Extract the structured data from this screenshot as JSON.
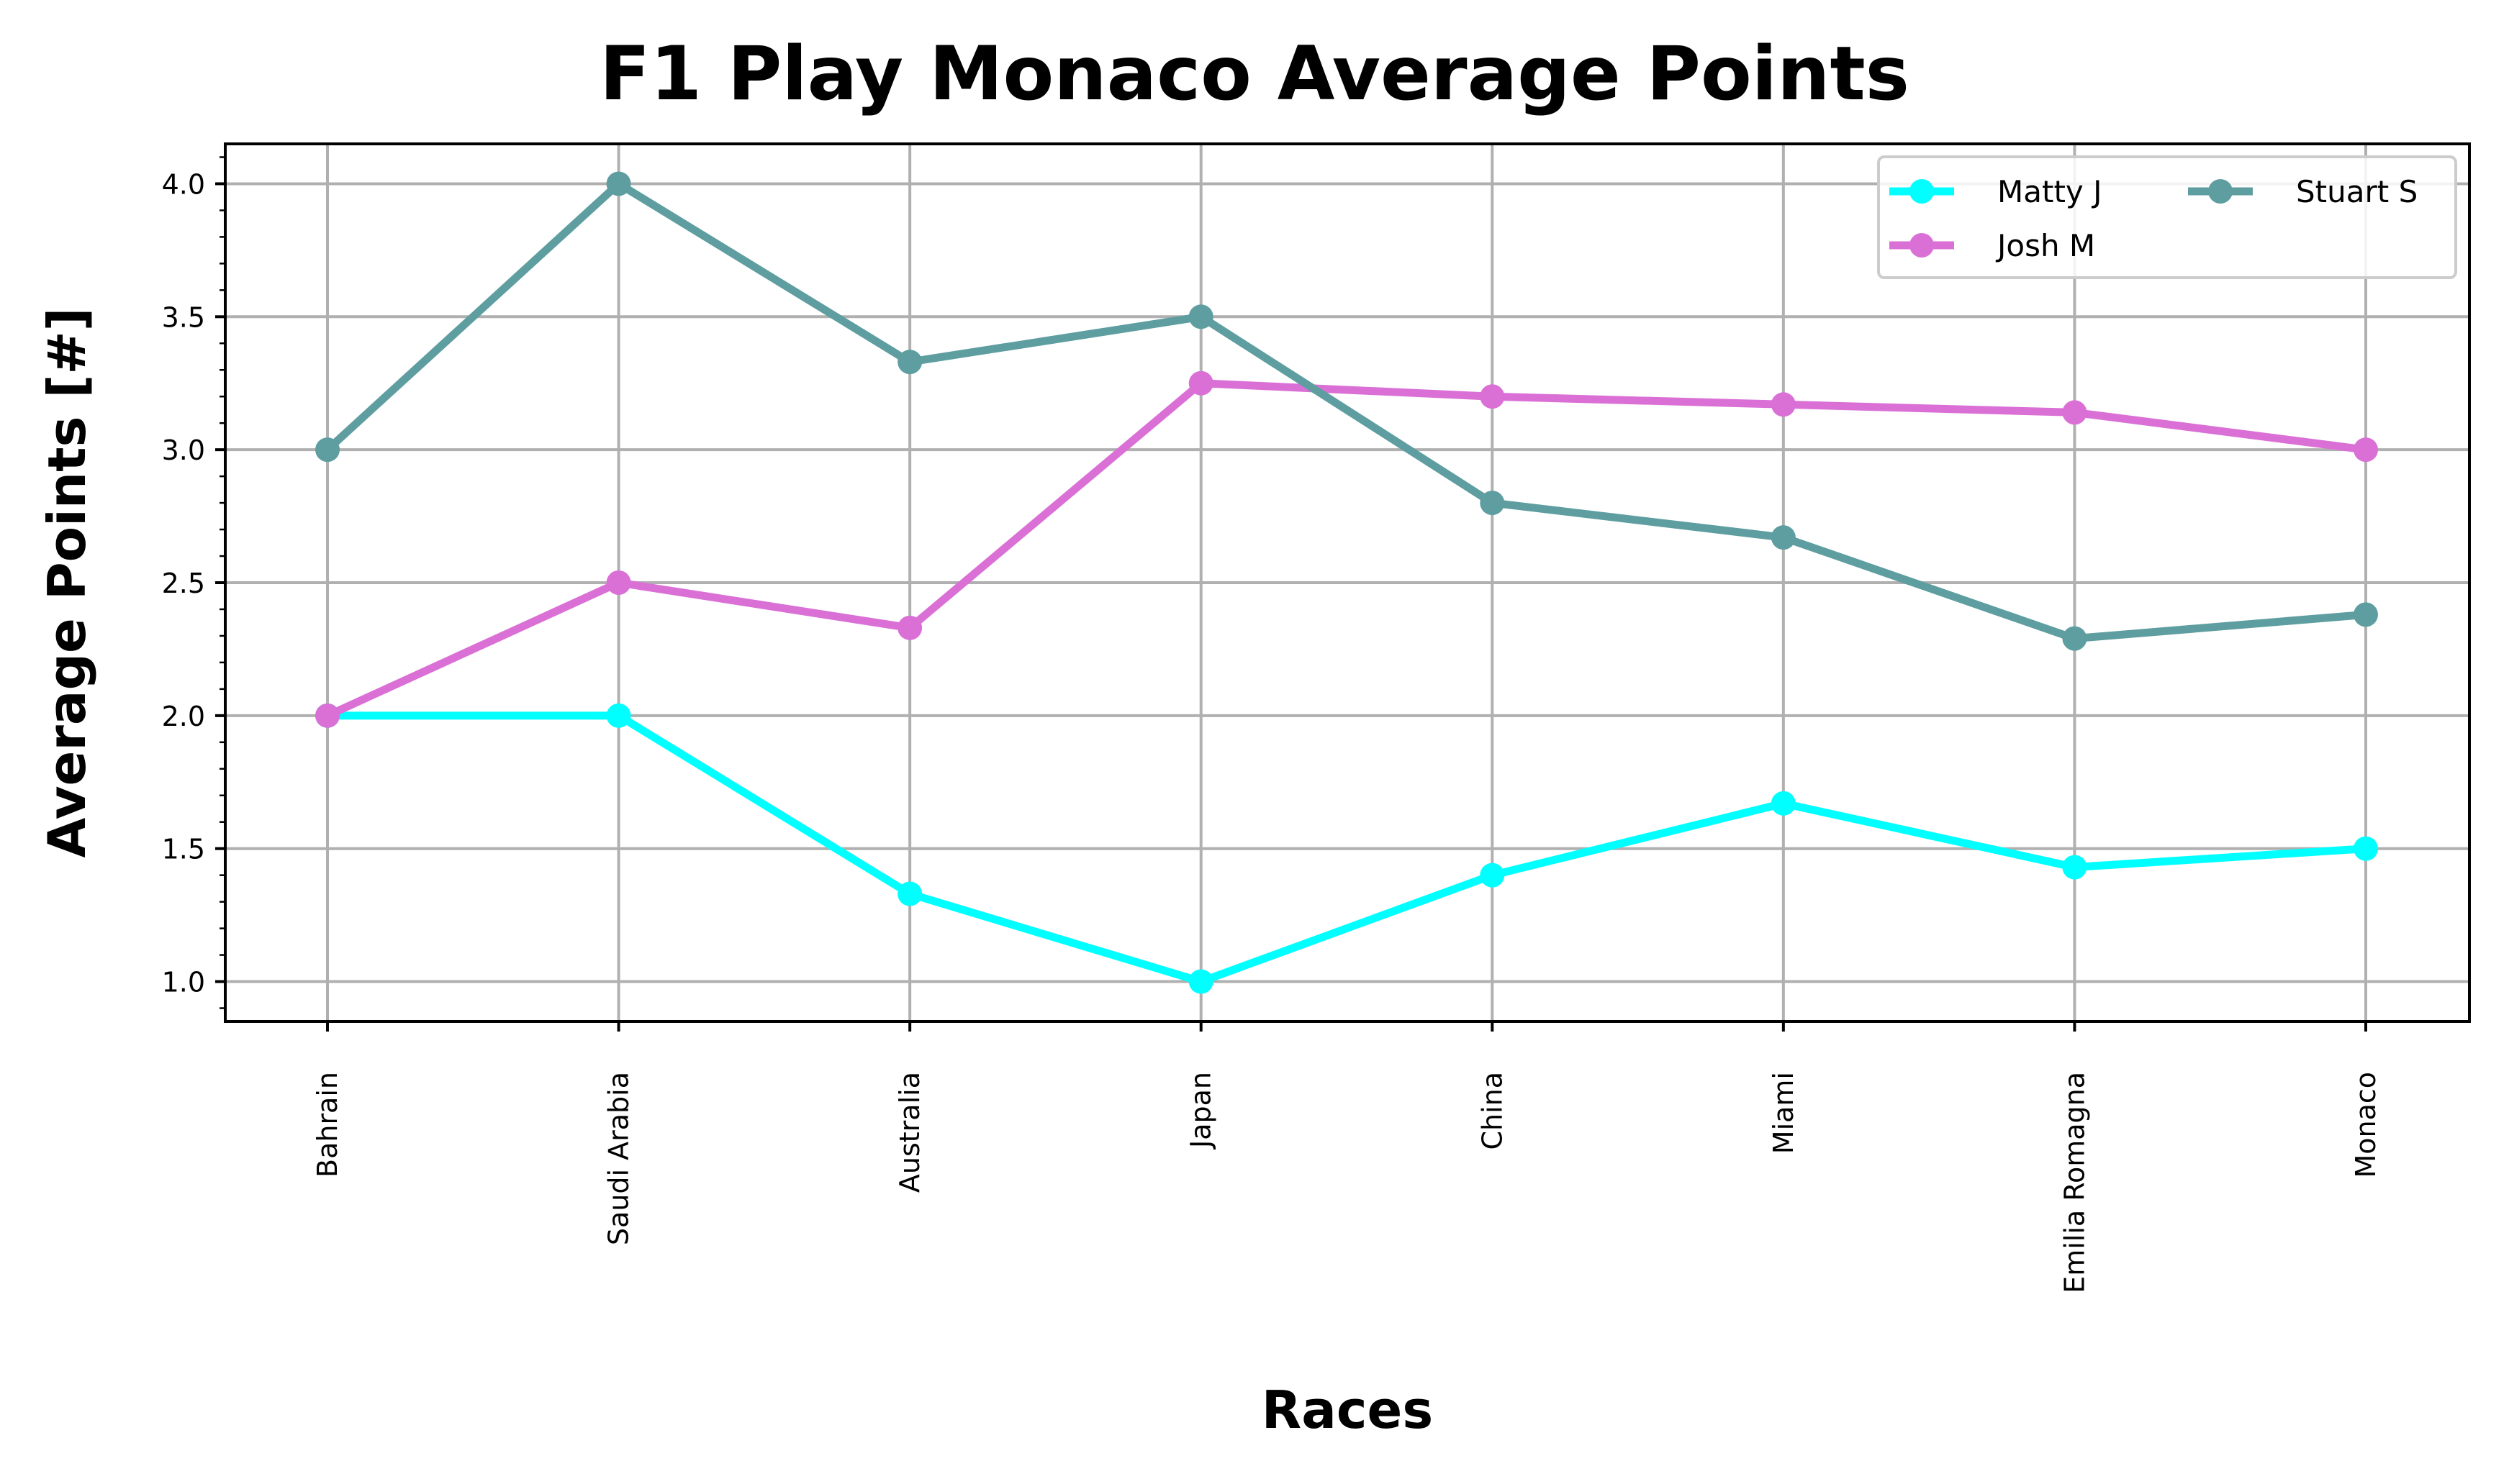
{
  "chart_data": {
    "type": "line",
    "title": "F1 Play Monaco Average Points",
    "xlabel": "Races",
    "ylabel": "Average Points [#]",
    "categories": [
      "Bahrain",
      "Saudi Arabia",
      "Australia",
      "Japan",
      "China",
      "Miami",
      "Emilia Romagna",
      "Monaco"
    ],
    "ylim": [
      0.85,
      4.15
    ],
    "yticks": [
      "1.0",
      "1.5",
      "2.0",
      "2.5",
      "3.0",
      "3.5",
      "4.0"
    ],
    "grid": true,
    "legend_position": "top-right",
    "series": [
      {
        "name": "Matty J",
        "color": "#00ffff",
        "values": [
          2.0,
          2.0,
          1.33,
          1.0,
          1.4,
          1.67,
          1.43,
          1.5
        ]
      },
      {
        "name": "Josh M",
        "color": "#da70d6",
        "values": [
          2.0,
          2.5,
          2.33,
          3.25,
          3.2,
          3.17,
          3.14,
          3.0
        ]
      },
      {
        "name": "Stuart S",
        "color": "#5f9ea0",
        "values": [
          3.0,
          4.0,
          3.33,
          3.5,
          2.8,
          2.67,
          2.29,
          2.38
        ]
      }
    ]
  }
}
